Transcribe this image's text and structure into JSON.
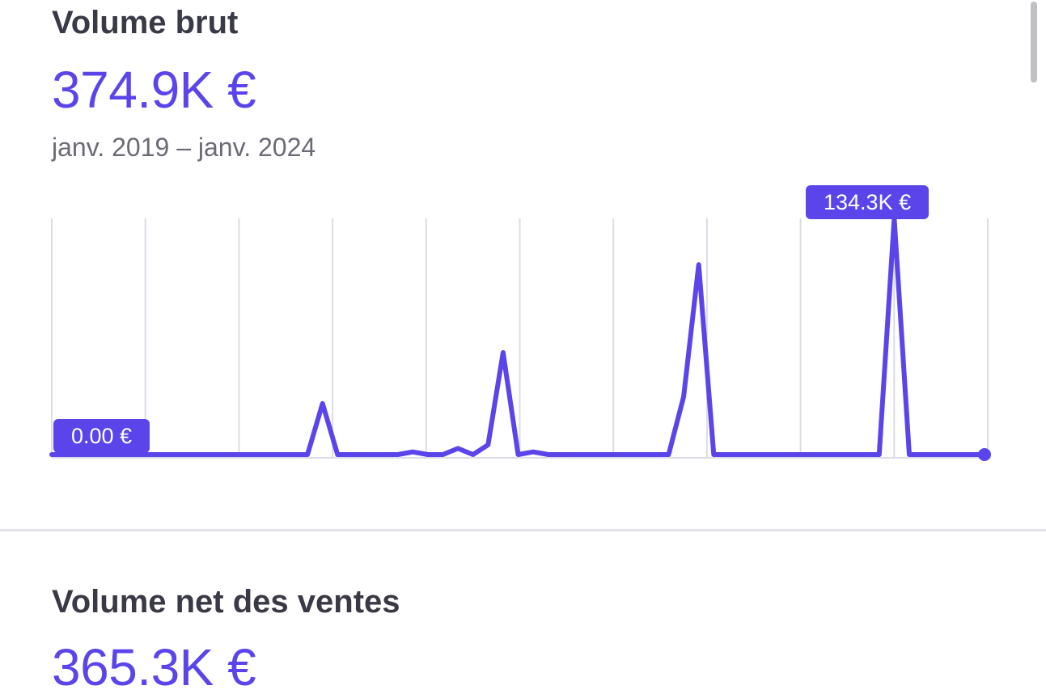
{
  "gross": {
    "title": "Volume brut",
    "value": "374.9K €",
    "date_range": "janv. 2019 – janv. 2024",
    "min_label": "0.00 €",
    "max_label": "134.3K €"
  },
  "net": {
    "title": "Volume net des ventes",
    "value": "365.3K €"
  },
  "colors": {
    "accent": "#5b45ea",
    "title": "#3a3a47",
    "muted": "#6b6b76",
    "grid": "#dcdce6"
  },
  "chart_data": {
    "type": "line",
    "x_range": [
      "janv. 2019",
      "janv. 2024"
    ],
    "ylim": [
      0,
      134.3
    ],
    "grid": "vertical",
    "series": [
      {
        "values": [
          0,
          0,
          0,
          0,
          0,
          0,
          0,
          0,
          0,
          0,
          0,
          0,
          0,
          0,
          0,
          0,
          0,
          0,
          29,
          0,
          0,
          0,
          0,
          0,
          1.5,
          0,
          0,
          3.5,
          0,
          5.5,
          58,
          0,
          1.5,
          0,
          0,
          0,
          0,
          0,
          0,
          0,
          0,
          0,
          33,
          108,
          0,
          0,
          0,
          0,
          0,
          0,
          0,
          0,
          0,
          0,
          0,
          0,
          134.3,
          0,
          0,
          0,
          0,
          0,
          0
        ]
      }
    ]
  }
}
